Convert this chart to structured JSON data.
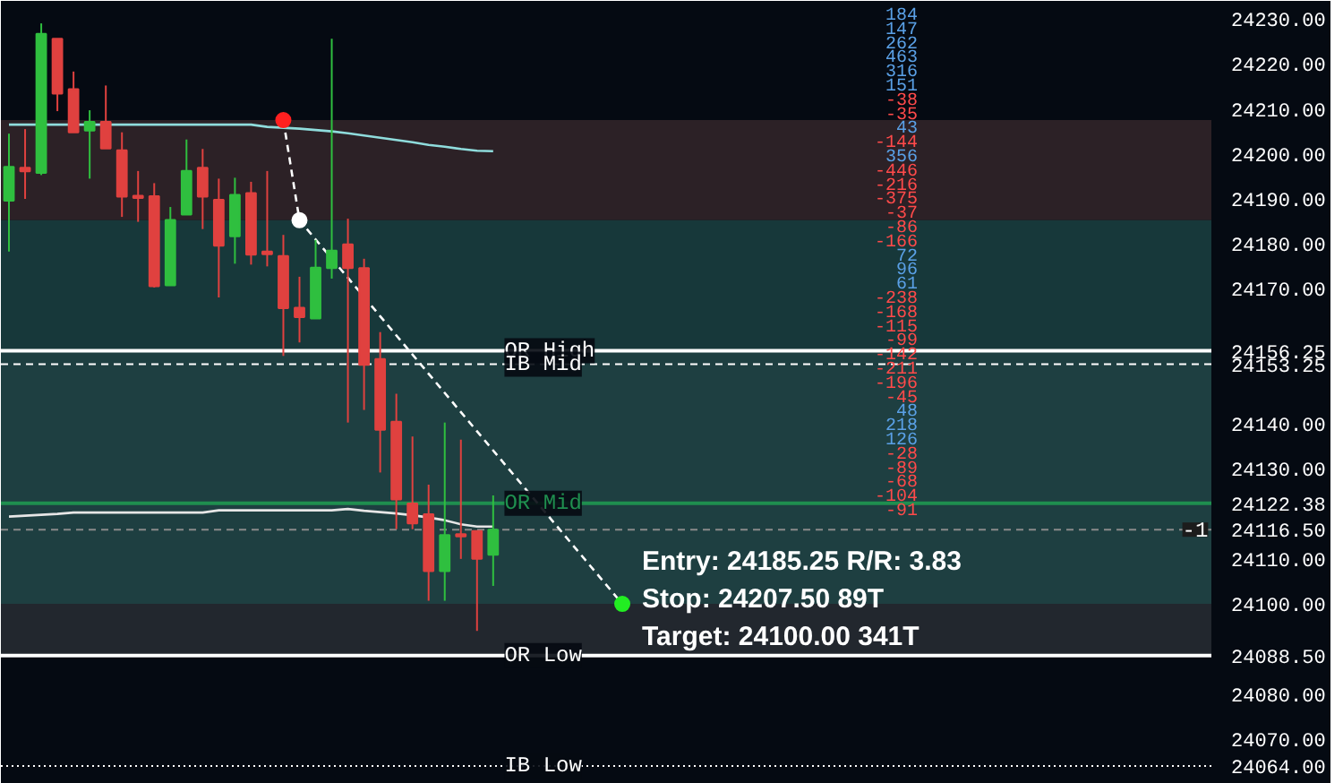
{
  "chart_data": {
    "type": "candlestick",
    "categories": [
      null,
      null,
      null,
      null,
      null,
      null,
      null,
      null,
      null,
      null,
      null,
      null,
      null,
      null,
      null,
      null,
      null,
      null,
      null,
      null,
      null,
      null,
      null,
      null,
      null,
      null,
      null,
      null,
      null,
      null,
      null,
      null,
      null,
      null,
      null,
      null,
      null,
      null,
      null,
      null,
      null,
      null,
      null,
      null,
      null,
      null,
      null,
      null,
      null,
      null,
      null,
      null,
      null,
      null,
      null,
      null,
      null,
      null,
      null,
      null,
      null,
      null,
      null,
      null,
      null,
      null,
      null,
      null,
      null,
      null,
      null,
      null,
      null,
      null,
      null
    ],
    "ohlc": [
      [
        24189.6,
        24204.5,
        24178.3,
        24197.1
      ],
      [
        24196.9,
        24205.5,
        24190.0,
        24196.1
      ],
      [
        24195.8,
        24229.0,
        24195.3,
        24226.7
      ],
      [
        24225.6,
        24225.6,
        24209.5,
        24213.4
      ],
      [
        24214.4,
        24218.3,
        24204.8,
        24204.8
      ],
      [
        24205.2,
        24209.7,
        24194.5,
        24207.1
      ],
      [
        24207.1,
        24215.2,
        24201.2,
        24201.2
      ],
      [
        24200.8,
        24204.8,
        24186.0,
        24190.5
      ],
      [
        24190.7,
        24196.2,
        24184.9,
        24190.2
      ],
      [
        24190.6,
        24193.5,
        24170.3,
        24170.6
      ],
      [
        24170.8,
        24188.2,
        24170.8,
        24185.3
      ],
      [
        24186.5,
        24203.2,
        24186.5,
        24196.2
      ],
      [
        24196.9,
        24201.1,
        24183.3,
        24190.5
      ],
      [
        24189.8,
        24194.5,
        24168.1,
        24179.6
      ],
      [
        24181.7,
        24194.7,
        24175.6,
        24190.9
      ],
      [
        24191.3,
        24193.8,
        24175.4,
        24177.6
      ],
      [
        24178.3,
        24196.2,
        24175.0,
        24177.7
      ],
      [
        24177.3,
        24182.0,
        24155.1,
        24165.7
      ],
      [
        24165.8,
        24172.7,
        24158.1,
        24163.7
      ],
      [
        24163.4,
        24180.9,
        24163.4,
        24174.7
      ],
      [
        24174.6,
        24225.6,
        24172.3,
        24178.5
      ],
      [
        24179.9,
        24185.6,
        24140.3,
        24174.6
      ],
      [
        24174.6,
        24176.7,
        24143.1,
        24153.1
      ],
      [
        24154.4,
        24160.4,
        24129.2,
        24138.7
      ],
      [
        24140.5,
        24146.7,
        24116.6,
        24123.2
      ],
      [
        24122.3,
        24137.2,
        24116.6,
        24117.9
      ],
      [
        24119.9,
        24126.5,
        24100.7,
        24107.3
      ],
      [
        24107.3,
        24140.3,
        24100.7,
        24115.3
      ],
      [
        24115.5,
        24136.5,
        24110.0,
        24115.0
      ],
      [
        24116.2,
        24116.2,
        24094.0,
        24110.0
      ],
      [
        24110.9,
        24124.1,
        24104.0,
        24116.5
      ],
      null,
      null,
      null,
      null,
      null,
      null,
      null,
      null,
      null,
      null,
      null,
      null,
      null,
      null,
      null,
      null,
      null,
      null,
      null,
      null,
      null,
      null,
      null,
      null,
      null,
      null,
      null,
      null,
      null,
      null,
      null,
      null,
      null,
      null,
      null,
      null,
      null,
      null,
      null,
      null,
      null,
      null,
      null,
      null
    ],
    "colors": [
      "#2fbf3f",
      "#e0413f",
      "#2fbf3f",
      "#e0413f",
      "#e0413f",
      "#2fbf3f",
      "#e0413f",
      "#e0413f",
      "#e0413f",
      "#e0413f",
      "#2fbf3f",
      "#2fbf3f",
      "#e0413f",
      "#e0413f",
      "#2fbf3f",
      "#e0413f",
      "#e0413f",
      "#e0413f",
      "#e0413f",
      "#2fbf3f",
      "#2fbf3f",
      "#e0413f",
      "#e0413f",
      "#e0413f",
      "#e0413f",
      "#e0413f",
      "#e0413f",
      "#2fbf3f",
      "#e0413f",
      "#e0413f",
      "#2fbf3f",
      null,
      null,
      null,
      null,
      null,
      null,
      null,
      null,
      null,
      null,
      null,
      null,
      null,
      null,
      null,
      null,
      null,
      null,
      null,
      null,
      null,
      null,
      null,
      null,
      null,
      null,
      null,
      null,
      null,
      null,
      null,
      null,
      null,
      null,
      null,
      null,
      null,
      null,
      null,
      null,
      null,
      null,
      null,
      null
    ],
    "series": [
      {
        "type": "line",
        "color": "#8fdcdc",
        "values": [
          24206.5,
          24206.5,
          24206.5,
          24206.5,
          24206.5,
          24206.5,
          24206.5,
          24206.5,
          24206.5,
          24206.5,
          24206.5,
          24206.5,
          24206.5,
          24206.5,
          24206.5,
          24206.5,
          24206.0,
          24205.8,
          24205.6,
          24205.3,
          24205.0,
          24204.6,
          24204.1,
          24203.6,
          24203.1,
          24202.6,
          24202.0,
          24201.6,
          24201.1,
          24200.7,
          24200.6,
          null,
          null,
          null,
          null,
          null,
          null,
          null,
          null,
          null,
          null,
          null,
          null,
          null,
          null,
          null,
          null,
          null,
          null,
          null,
          null,
          null,
          null,
          null,
          null,
          null,
          null,
          null,
          null,
          null,
          null,
          null,
          null,
          null,
          null,
          null,
          null,
          null,
          null,
          null,
          null,
          null,
          null,
          null,
          null
        ]
      },
      {
        "type": "line",
        "color": "#e6e6e6",
        "values": [
          24119.4,
          24119.6,
          24119.8,
          24120.0,
          24120.3,
          24120.3,
          24120.3,
          24120.3,
          24120.3,
          24120.3,
          24120.3,
          24120.3,
          24120.3,
          24120.8,
          24120.8,
          24120.8,
          24120.8,
          24120.8,
          24120.8,
          24120.8,
          24120.8,
          24121.1,
          24120.7,
          24120.4,
          24120.1,
          24119.7,
          24119.2,
          24118.6,
          24117.7,
          24117.2,
          24117.2,
          null,
          null,
          null,
          null,
          null,
          null,
          null,
          null,
          null,
          null,
          null,
          null,
          null,
          null,
          null,
          null,
          null,
          null,
          null,
          null,
          null,
          null,
          null,
          null,
          null,
          null,
          null,
          null,
          null,
          null,
          null,
          null,
          null,
          null,
          null,
          null,
          null,
          null,
          null,
          null,
          null,
          null,
          null,
          null
        ]
      },
      {
        "type": "line",
        "color": "#ffffff",
        "line_style": "dashed",
        "marker": "circle",
        "values": [
          null,
          null,
          null,
          null,
          null,
          null,
          null,
          null,
          null,
          null,
          null,
          null,
          null,
          null,
          null,
          null,
          null,
          24207.5,
          24185.25,
          null,
          null,
          null,
          null,
          null,
          null,
          null,
          null,
          null,
          null,
          null,
          null,
          null,
          null,
          null,
          null,
          null,
          null,
          null,
          24100.0,
          null,
          null,
          null,
          null,
          null,
          null,
          null,
          null,
          null,
          null,
          null,
          null,
          null,
          null,
          null,
          null,
          null,
          null,
          null,
          null,
          null,
          null,
          null,
          null,
          null,
          null,
          null,
          null,
          null,
          null,
          null,
          null,
          null,
          null,
          null,
          null
        ],
        "colors": [
          null,
          null,
          null,
          null,
          null,
          null,
          null,
          null,
          null,
          null,
          null,
          null,
          null,
          null,
          null,
          null,
          null,
          "#ff2020",
          "#ffffff",
          null,
          null,
          null,
          null,
          null,
          null,
          null,
          null,
          null,
          null,
          null,
          null,
          null,
          null,
          null,
          null,
          null,
          null,
          null,
          "#22ee22",
          null,
          null,
          null,
          null,
          null,
          null,
          null,
          null,
          null,
          null,
          null,
          null,
          null,
          null,
          null,
          null,
          null,
          null,
          null,
          null,
          null,
          null,
          null,
          null,
          null,
          null,
          null,
          null,
          null,
          null,
          null,
          null,
          null,
          null,
          null,
          null
        ]
      }
    ],
    "ylim": [
      24060,
      24234
    ],
    "yticks": [
      {
        "value": 24070,
        "label": "24070.00"
      },
      {
        "value": 24080,
        "label": "24080.00"
      },
      {
        "value": 24100,
        "label": "24100.00"
      },
      {
        "value": 24110,
        "label": "24110.00"
      },
      {
        "value": 24130,
        "label": "24130.00"
      },
      {
        "value": 24140,
        "label": "24140.00"
      },
      {
        "value": 24170,
        "label": "24170.00"
      },
      {
        "value": 24180,
        "label": "24180.00"
      },
      {
        "value": 24190,
        "label": "24190.00"
      },
      {
        "value": 24200,
        "label": "24200.00"
      },
      {
        "value": 24210,
        "label": "24210.00"
      },
      {
        "value": 24220,
        "label": "24220.00"
      },
      {
        "value": 24230,
        "label": "24230.00"
      },
      {
        "value": 24156.25,
        "label": "24156.25"
      },
      {
        "value": 24153.25,
        "label": "24153.25"
      },
      {
        "value": 24122.38,
        "label": "24122.38"
      },
      {
        "value": 24116.5,
        "label": "24116.50"
      },
      {
        "value": 24088.5,
        "label": "24088.50"
      },
      {
        "value": 24064,
        "label": "24064.00"
      }
    ],
    "bands": [
      {
        "axis": "y",
        "from": 24088.5,
        "to": 24156.25,
        "color": "#22272e"
      },
      {
        "axis": "y",
        "from": 24185.25,
        "to": 24207.5,
        "color": "#3a2a2e"
      },
      {
        "axis": "y",
        "from": 24100.0,
        "to": 24185.25,
        "color": "#1e4848"
      }
    ],
    "ref_lines": [
      {
        "axis": "y",
        "value": 24156.25,
        "label": "OR High",
        "color": "#ffffff",
        "line_style": "solid"
      },
      {
        "axis": "y",
        "value": 24153.25,
        "label": "IB Mid",
        "color": "#ffffff",
        "line_style": "dashed"
      },
      {
        "axis": "y",
        "value": 24122.38,
        "label": "OR Mid",
        "color": "#1f8f4f",
        "line_style": "solid"
      },
      {
        "axis": "y",
        "value": 24088.5,
        "label": "OR Low",
        "color": "#ffffff",
        "line_style": "solid"
      },
      {
        "axis": "y",
        "value": 24064.0,
        "label": "IB Low",
        "color": "#ffffff",
        "line_style": "dotted"
      },
      {
        "axis": "y",
        "value": 24116.5,
        "color": "#8a8a8a",
        "line_style": "dashed"
      }
    ],
    "annotations": [
      "Entry: 24185.25  R/R: 3.83",
      "Stop: 24207.50  89T",
      "Target: 24100.00  341T",
      "-1",
      "184",
      "147",
      "262",
      "463",
      "316",
      "151",
      "-38",
      "-35",
      "43",
      "-144",
      "356",
      "-446",
      "-216",
      "-375",
      "-37",
      "-86",
      "-166",
      "72",
      "96",
      "61",
      "-238",
      "-168",
      "-115",
      "-99",
      "-142",
      "-211",
      "-196",
      "-45",
      "48",
      "218",
      "126",
      "-28",
      "-89",
      "-68",
      "-104",
      "-91"
    ],
    "grid": false
  }
}
